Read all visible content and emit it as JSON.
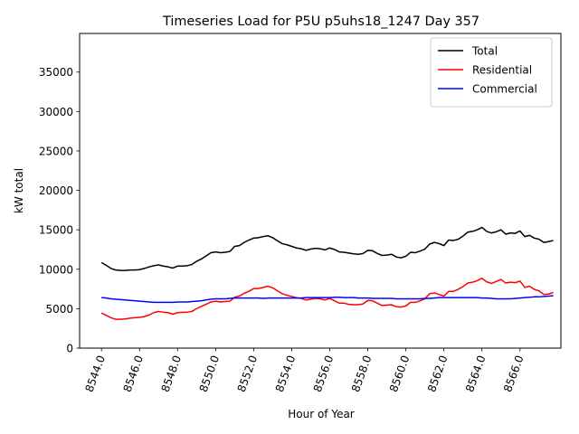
{
  "chart_data": {
    "type": "line",
    "title": "Timeseries Load for P5U p5uhs18_1247  Day 357",
    "xlabel": "Hour of Year",
    "ylabel": "kW total",
    "xlim": [
      8542.85,
      8568.15
    ],
    "ylim": [
      0,
      39900
    ],
    "xticks": [
      8544,
      8546,
      8548,
      8550,
      8552,
      8554,
      8556,
      8558,
      8560,
      8562,
      8564,
      8566
    ],
    "xtick_labels": [
      "8544.0",
      "8546.0",
      "8548.0",
      "8550.0",
      "8552.0",
      "8554.0",
      "8556.0",
      "8558.0",
      "8560.0",
      "8562.0",
      "8564.0",
      "8566.0"
    ],
    "yticks": [
      0,
      5000,
      10000,
      15000,
      20000,
      25000,
      30000,
      35000
    ],
    "ytick_labels": [
      "0",
      "5000",
      "10000",
      "15000",
      "20000",
      "25000",
      "30000",
      "35000"
    ],
    "grid": false,
    "legend_position": "top-right",
    "x": [
      8544.0,
      8544.25,
      8544.5,
      8544.75,
      8545.0,
      8545.25,
      8545.5,
      8545.75,
      8546.0,
      8546.25,
      8546.5,
      8546.75,
      8547.0,
      8547.25,
      8547.5,
      8547.75,
      8548.0,
      8548.25,
      8548.5,
      8548.75,
      8549.0,
      8549.25,
      8549.5,
      8549.75,
      8550.0,
      8550.25,
      8550.5,
      8550.75,
      8551.0,
      8551.25,
      8551.5,
      8551.75,
      8552.0,
      8552.25,
      8552.5,
      8552.75,
      8553.0,
      8553.25,
      8553.5,
      8553.75,
      8554.0,
      8554.25,
      8554.5,
      8554.75,
      8555.0,
      8555.25,
      8555.5,
      8555.75,
      8556.0,
      8556.25,
      8556.5,
      8556.75,
      8557.0,
      8557.25,
      8557.5,
      8557.75,
      8558.0,
      8558.25,
      8558.5,
      8558.75,
      8559.0,
      8559.25,
      8559.5,
      8559.75,
      8560.0,
      8560.25,
      8560.5,
      8560.75,
      8561.0,
      8561.25,
      8561.5,
      8561.75,
      8562.0,
      8562.25,
      8562.5,
      8562.75,
      8563.0,
      8563.25,
      8563.5,
      8563.75,
      8564.0,
      8564.25,
      8564.5,
      8564.75,
      8565.0,
      8565.25,
      8565.5,
      8565.75,
      8566.0,
      8566.25,
      8566.5,
      8566.75,
      8567.0,
      8567.25,
      8567.5,
      8567.75
    ],
    "series": [
      {
        "name": "Total",
        "color": "#000000",
        "values": [
          10850,
          10500,
          10100,
          9900,
          9850,
          9850,
          9900,
          9900,
          9950,
          10100,
          10300,
          10450,
          10550,
          10400,
          10300,
          10150,
          10400,
          10400,
          10450,
          10600,
          11000,
          11300,
          11700,
          12100,
          12200,
          12100,
          12150,
          12250,
          12900,
          13000,
          13400,
          13700,
          13950,
          14000,
          14150,
          14250,
          14000,
          13600,
          13250,
          13100,
          12900,
          12700,
          12600,
          12400,
          12550,
          12650,
          12600,
          12450,
          12700,
          12500,
          12200,
          12150,
          12050,
          11950,
          11900,
          12000,
          12400,
          12350,
          12000,
          11750,
          11800,
          11900,
          11550,
          11450,
          11650,
          12150,
          12100,
          12300,
          12550,
          13200,
          13400,
          13250,
          13000,
          13700,
          13650,
          13800,
          14200,
          14700,
          14800,
          15000,
          15300,
          14800,
          14600,
          14750,
          15000,
          14450,
          14600,
          14550,
          14850,
          14150,
          14300,
          13950,
          13800,
          13400,
          13500,
          13650
        ]
      },
      {
        "name": "Residential",
        "color": "#ff0000",
        "values": [
          4450,
          4150,
          3850,
          3650,
          3650,
          3700,
          3800,
          3850,
          3900,
          4000,
          4200,
          4500,
          4650,
          4550,
          4500,
          4300,
          4500,
          4550,
          4550,
          4650,
          5000,
          5300,
          5550,
          5850,
          5950,
          5850,
          5900,
          5950,
          6450,
          6600,
          6950,
          7200,
          7550,
          7550,
          7700,
          7850,
          7650,
          7250,
          6900,
          6700,
          6550,
          6400,
          6300,
          6100,
          6200,
          6300,
          6250,
          6100,
          6300,
          6000,
          5700,
          5700,
          5550,
          5500,
          5500,
          5600,
          6050,
          6000,
          5700,
          5400,
          5450,
          5500,
          5250,
          5200,
          5350,
          5800,
          5800,
          6000,
          6250,
          6900,
          7000,
          6800,
          6600,
          7200,
          7200,
          7450,
          7800,
          8250,
          8350,
          8550,
          8850,
          8400,
          8200,
          8450,
          8700,
          8250,
          8350,
          8300,
          8500,
          7700,
          7850,
          7450,
          7250,
          6800,
          6850,
          7050
        ]
      },
      {
        "name": "Commercial",
        "color": "#0000ff",
        "values": [
          6400,
          6350,
          6250,
          6200,
          6150,
          6100,
          6050,
          6000,
          5950,
          5900,
          5850,
          5800,
          5800,
          5800,
          5800,
          5800,
          5850,
          5850,
          5850,
          5900,
          5950,
          6000,
          6100,
          6200,
          6250,
          6250,
          6250,
          6300,
          6350,
          6350,
          6350,
          6350,
          6350,
          6350,
          6300,
          6350,
          6350,
          6350,
          6350,
          6350,
          6350,
          6350,
          6350,
          6400,
          6400,
          6400,
          6400,
          6400,
          6400,
          6450,
          6450,
          6400,
          6400,
          6400,
          6350,
          6350,
          6350,
          6300,
          6300,
          6300,
          6300,
          6300,
          6250,
          6250,
          6250,
          6250,
          6250,
          6250,
          6300,
          6300,
          6350,
          6400,
          6400,
          6400,
          6400,
          6400,
          6400,
          6400,
          6400,
          6400,
          6350,
          6350,
          6300,
          6250,
          6250,
          6250,
          6250,
          6300,
          6350,
          6400,
          6450,
          6500,
          6500,
          6550,
          6600,
          6650
        ]
      }
    ]
  }
}
